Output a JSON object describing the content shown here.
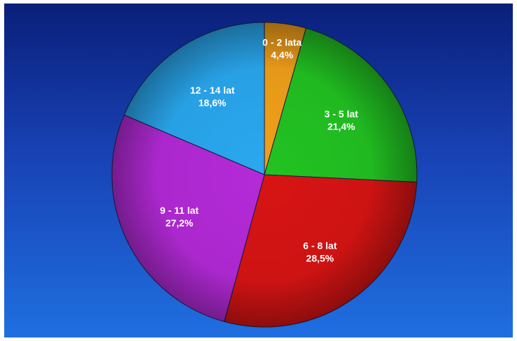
{
  "chart_data": {
    "type": "pie",
    "title": "",
    "legend": "none",
    "slices": [
      {
        "label": "0 - 2 lata",
        "value": 4.4,
        "value_label": "4,4%",
        "color": "#f2a01a"
      },
      {
        "label": "3 - 5 lat",
        "value": 21.4,
        "value_label": "21,4%",
        "color": "#22c322"
      },
      {
        "label": "6 - 8 lat",
        "value": 28.5,
        "value_label": "28,5%",
        "color": "#d81414"
      },
      {
        "label": "9 - 11 lat",
        "value": 27.2,
        "value_label": "27,2%",
        "color": "#b42ad8"
      },
      {
        "label": "12 - 14 lat",
        "value": 18.6,
        "value_label": "18,6%",
        "color": "#2aa8f0"
      }
    ]
  }
}
